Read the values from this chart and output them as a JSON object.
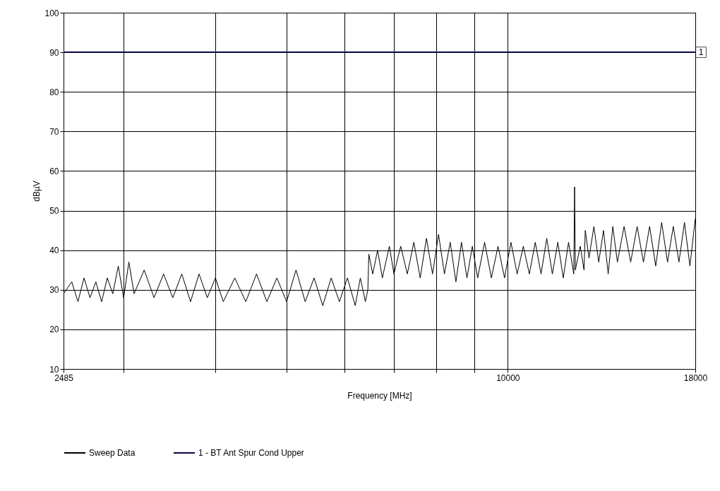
{
  "chart_data": {
    "type": "line",
    "xlabel": "Frequency [MHz]",
    "ylabel": "dBµV",
    "log": "x",
    "grid": true,
    "legend": "bottom",
    "xlim": [
      2485,
      18000
    ],
    "xticks": [
      2485,
      {
        "value": 3000,
        "label": null
      },
      {
        "value": 4000,
        "label": null
      },
      {
        "value": 5000,
        "label": null
      },
      {
        "value": 6000,
        "label": null
      },
      {
        "value": 7000,
        "label": null
      },
      {
        "value": 8000,
        "label": null
      },
      {
        "value": 9000,
        "label": null
      },
      10000,
      18000
    ],
    "ylim": [
      10,
      100
    ],
    "yticks": [
      10,
      20,
      30,
      40,
      50,
      60,
      70,
      80,
      90,
      100
    ],
    "annotations": [
      {
        "text": "1",
        "x": 18000,
        "y": 90
      }
    ],
    "series": [
      {
        "name": "Sweep Data",
        "color": "#000000",
        "x": [
          2485,
          2550,
          2600,
          2650,
          2700,
          2750,
          2800,
          2850,
          2900,
          2950,
          3000,
          3050,
          3100,
          3200,
          3300,
          3400,
          3500,
          3600,
          3700,
          3800,
          3900,
          4000,
          4100,
          4250,
          4400,
          4550,
          4700,
          4850,
          5000,
          5150,
          5300,
          5450,
          5600,
          5750,
          5900,
          6050,
          6200,
          6300,
          6400,
          6450,
          6470,
          6550,
          6650,
          6750,
          6900,
          7000,
          7150,
          7300,
          7450,
          7600,
          7750,
          7900,
          8050,
          8200,
          8350,
          8500,
          8650,
          8800,
          8950,
          9100,
          9300,
          9500,
          9700,
          9900,
          10100,
          10300,
          10500,
          10700,
          10900,
          11100,
          11300,
          11500,
          11700,
          11900,
          12100,
          12300,
          12330,
          12360,
          12550,
          12700,
          12750,
          12900,
          13100,
          13300,
          13500,
          13700,
          13900,
          14100,
          14400,
          14700,
          15000,
          15300,
          15600,
          15900,
          16200,
          16500,
          16800,
          17100,
          17400,
          17700,
          18000
        ],
        "values": [
          29,
          32,
          27,
          33,
          28,
          32,
          27,
          33,
          29,
          36,
          28,
          37,
          29,
          35,
          28,
          34,
          28,
          34,
          27,
          34,
          28,
          33,
          27,
          33,
          27,
          34,
          27,
          33,
          27,
          35,
          27,
          33,
          26,
          33,
          27,
          33,
          26,
          33,
          27,
          30,
          39,
          34,
          40,
          33,
          41,
          34,
          41,
          34,
          42,
          33,
          43,
          34,
          44,
          34,
          42,
          32,
          42,
          33,
          41,
          33,
          42,
          33,
          41,
          33,
          42,
          34,
          41,
          34,
          42,
          34,
          43,
          34,
          42,
          33,
          42,
          34,
          56,
          35,
          41,
          35,
          45,
          38,
          46,
          37,
          45,
          34,
          46,
          37,
          46,
          37,
          46,
          37,
          46,
          36,
          47,
          37,
          46,
          37,
          47,
          36,
          48
        ]
      },
      {
        "name": "1 - BT Ant Spur Cond Upper",
        "color": "#000080",
        "x": [
          2485,
          18000
        ],
        "values": [
          90,
          90
        ]
      }
    ]
  }
}
